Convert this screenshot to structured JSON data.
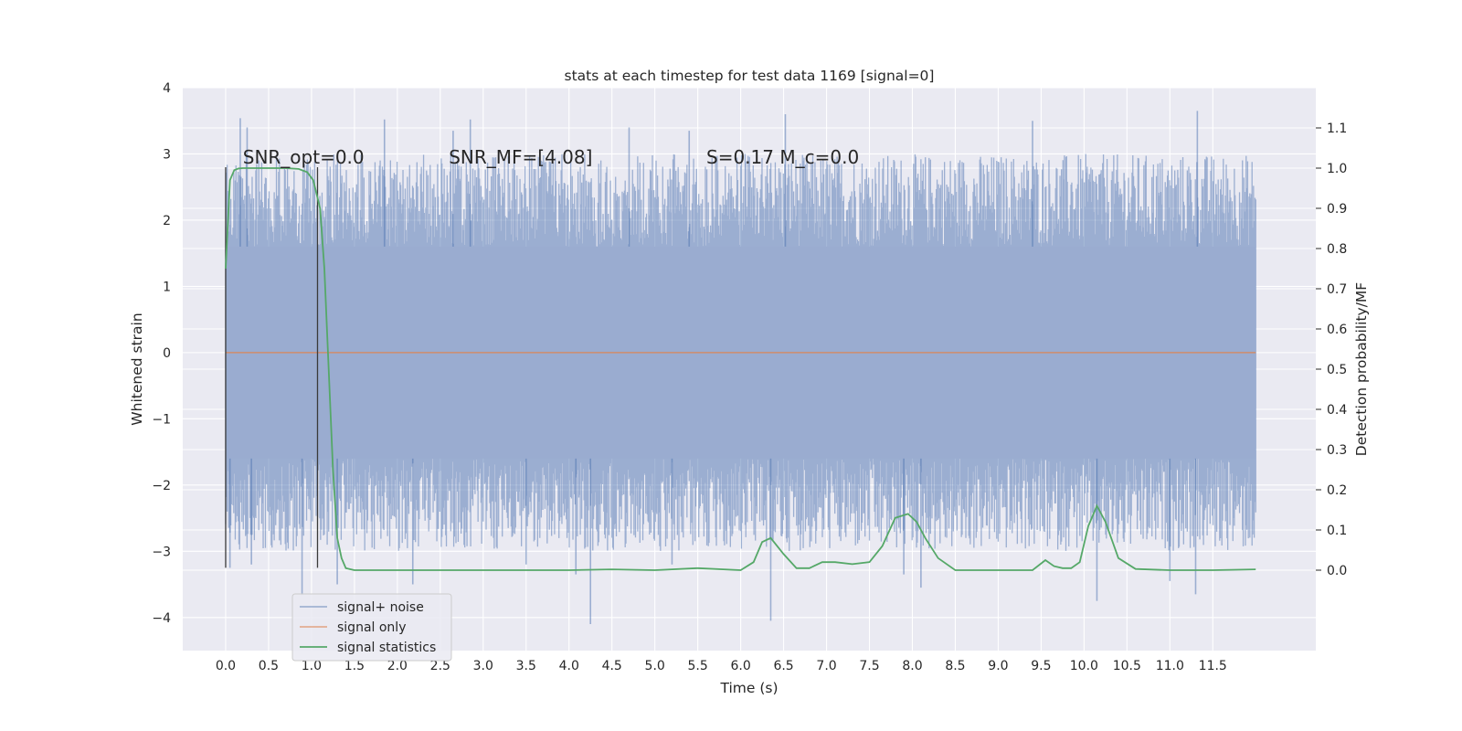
{
  "chart_data": {
    "type": "line",
    "title": "stats at each timestep for test data 1169 [signal=0]",
    "xlabel": "Time (s)",
    "ylabel": "Whitened strain",
    "ylabel_right": "Detection probability/MF",
    "xlim": [
      -0.5,
      12.7
    ],
    "ylim": [
      -4.5,
      4.0
    ],
    "ylim_right": [
      -0.2,
      1.2
    ],
    "x_ticks": [
      "0.0",
      "0.5",
      "1.0",
      "1.5",
      "2.0",
      "2.5",
      "3.0",
      "3.5",
      "4.0",
      "4.5",
      "5.0",
      "5.5",
      "6.0",
      "6.5",
      "7.0",
      "7.5",
      "8.0",
      "8.5",
      "9.0",
      "9.5",
      "10.0",
      "10.5",
      "11.0",
      "11.5"
    ],
    "y_ticks": [
      "4",
      "3",
      "2",
      "1",
      "0",
      "−1",
      "−2",
      "−3",
      "−4"
    ],
    "y_ticks_right": [
      "1.1",
      "1.0",
      "0.9",
      "0.8",
      "0.7",
      "0.6",
      "0.5",
      "0.4",
      "0.3",
      "0.2",
      "0.1",
      "0.0"
    ],
    "grid": true,
    "legend_position": "lower-left",
    "series": [
      {
        "name": "signal+ noise",
        "color": "#4c72b0",
        "axis": "left",
        "x_range": [
          0.0,
          12.0
        ],
        "baseline_range": [
          -1.6,
          1.6
        ],
        "spikes": [
          [
            0.17,
            3.54
          ],
          [
            0.89,
            -3.66
          ],
          [
            1.85,
            3.52
          ],
          [
            2.18,
            -3.5
          ],
          [
            2.85,
            3.52
          ],
          [
            4.08,
            -3.35
          ],
          [
            4.25,
            -4.1
          ],
          [
            4.7,
            3.4
          ],
          [
            6.35,
            -4.05
          ],
          [
            6.52,
            3.6
          ],
          [
            7.9,
            -3.35
          ],
          [
            8.1,
            -3.55
          ],
          [
            10.15,
            -3.75
          ],
          [
            11.0,
            -3.45
          ],
          [
            11.32,
            3.65
          ],
          [
            11.3,
            -3.65
          ],
          [
            0.05,
            -3.25
          ],
          [
            1.3,
            -3.5
          ],
          [
            0.3,
            -3.2
          ],
          [
            5.4,
            3.35
          ],
          [
            3.5,
            -3.2
          ],
          [
            9.4,
            3.5
          ],
          [
            0.25,
            3.4
          ],
          [
            2.65,
            3.35
          ],
          [
            5.2,
            -3.2
          ]
        ]
      },
      {
        "name": "signal only",
        "color": "#dd8452",
        "axis": "left",
        "x": [
          0.0,
          12.0
        ],
        "y": [
          0.0,
          0.0
        ]
      },
      {
        "name": "signal statistics",
        "color": "#55a868",
        "axis": "right",
        "x": [
          0.0,
          0.05,
          0.1,
          0.15,
          0.2,
          0.3,
          0.5,
          0.7,
          0.85,
          0.95,
          1.02,
          1.1,
          1.15,
          1.2,
          1.25,
          1.3,
          1.35,
          1.4,
          1.5,
          2.0,
          3.0,
          3.5,
          4.0,
          4.5,
          5.0,
          5.5,
          6.0,
          6.15,
          6.25,
          6.35,
          6.5,
          6.65,
          6.8,
          6.95,
          7.1,
          7.3,
          7.5,
          7.65,
          7.8,
          7.95,
          8.05,
          8.15,
          8.3,
          8.5,
          9.0,
          9.4,
          9.55,
          9.65,
          9.75,
          9.85,
          9.95,
          10.05,
          10.15,
          10.25,
          10.4,
          10.6,
          11.0,
          11.5,
          12.0
        ],
        "y": [
          0.75,
          0.97,
          0.995,
          0.999,
          1.0,
          1.0,
          1.0,
          1.0,
          0.998,
          0.99,
          0.97,
          0.9,
          0.75,
          0.5,
          0.25,
          0.08,
          0.03,
          0.005,
          0.0,
          0.0,
          0.0,
          0.0,
          0.0,
          0.002,
          0.0,
          0.005,
          0.0,
          0.02,
          0.07,
          0.08,
          0.04,
          0.005,
          0.005,
          0.02,
          0.02,
          0.015,
          0.02,
          0.06,
          0.13,
          0.14,
          0.12,
          0.08,
          0.03,
          0.0,
          0.0,
          0.0,
          0.025,
          0.01,
          0.005,
          0.005,
          0.02,
          0.11,
          0.16,
          0.12,
          0.03,
          0.003,
          0.0,
          0.0,
          0.002
        ]
      }
    ],
    "vertical_lines": [
      {
        "x": 0.0,
        "y": [
          -3.25,
          2.8
        ]
      },
      {
        "x": 1.07,
        "y": [
          -3.25,
          2.8
        ]
      }
    ],
    "annotations": [
      {
        "x": 0.2,
        "y": 2.95,
        "text": "SNR_opt=0.0"
      },
      {
        "x": 2.6,
        "y": 2.95,
        "text": "SNR_MF=[4.08]"
      },
      {
        "x": 5.6,
        "y": 2.95,
        "text": "S=0.17   M_c=0.0"
      }
    ]
  }
}
